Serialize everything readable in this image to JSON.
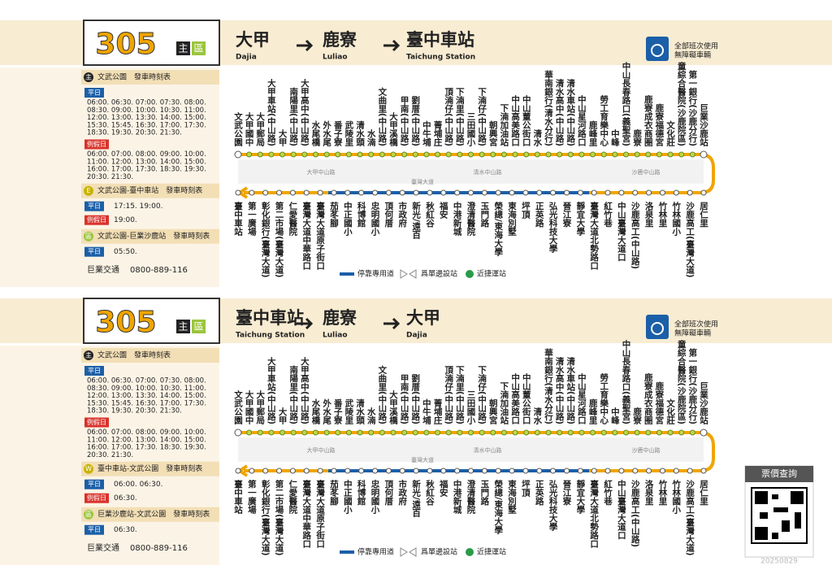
{
  "panels": [
    {
      "route": "305",
      "badge_main": "主",
      "badge_zone": "區",
      "stations": [
        {
          "name": "大甲",
          "en": "Dajia"
        },
        {
          "name": "鹿寮",
          "en": "Luliao"
        },
        {
          "name": "臺中車站",
          "en": "Taichung Station"
        }
      ],
      "accessible": [
        "全部班次使用",
        "無障礙車輛"
      ],
      "timetable": [
        {
          "icon": "主",
          "title": "文武公園　發車時刻表",
          "rows": [
            {
              "label": "平日",
              "times": [
                "06:00. 06:30. 07:00. 07:30. 08:00.",
                "08:30. 09:00. 10:00. 10:30. 11:00.",
                "12:00. 13:00. 13:30. 14:00. 15:00.",
                "15:30. 15:45. 16:30. 17:00. 17:30.",
                "18:30. 19:30. 20:30. 21:30."
              ]
            },
            {
              "label": "例假日",
              "times": [
                "06:00. 07:00. 08:00. 09:00. 10:00.",
                "11:00. 12:00. 13:00. 14:00. 15:00.",
                "16:00. 17:00. 17:30. 18:30. 19:30.",
                "20:30. 21:30."
              ]
            }
          ]
        },
        {
          "icon": "E",
          "title": "文武公園-臺中車站　發車時刻表",
          "rows": [
            {
              "label": "平日",
              "times": [
                "17:15. 19:00."
              ]
            },
            {
              "label": "例假日",
              "times": [
                "19:00."
              ]
            }
          ]
        },
        {
          "icon": "區",
          "title": "文武公園-巨業沙鹿站　發車時刻表",
          "rows": [
            {
              "label": "平日",
              "times": [
                "05:50."
              ]
            }
          ]
        }
      ],
      "company": "巨業交通",
      "phone": "0800-889-116",
      "upper_stops": [
        "文武公園",
        "大甲國中",
        "大甲郵局",
        "大甲車站(中山路)",
        "大甲",
        "南陽里(中山路)",
        "大甲高中(中山路)",
        "水尾橋",
        "外水尾",
        "番子寮",
        "武陵里",
        "清水頭",
        "水湳",
        "文曲里(中山路)",
        "大甲溪橋",
        "甲南(中山路)",
        "劉厝(中山路)",
        "中牛埔",
        "菁埔庄",
        "頂湳仔(中山路)",
        "下湳里(中山路)",
        "三田國小",
        "下湳仔(中山路)",
        "朝興宮",
        "下湳加油站",
        "中山高美路口",
        "中山董公街口",
        "清水",
        "華南銀行(清水分行)",
        "清水高中(中山路)",
        "清水車站(中山路)",
        "中山星河路口",
        "鹿峰里",
        "勞工育樂中心",
        "中峰",
        "中山長春路口(義聖宮)",
        "鹿寮",
        "鹿寮成衣商圈",
        "鹿寮福德宮",
        "文化莊",
        "童綜合醫院(沙鹿院區)",
        "第一銀行(沙鹿分行)",
        "巨業沙鹿站"
      ],
      "lower_stops": [
        "臺中車站",
        "第一廣場",
        "彰化銀行(臺灣大道)",
        "第二市場(臺灣大道)",
        "仁愛醫院",
        "臺灣大道中華路口",
        "臺灣大道原子街口",
        "茄苳腳",
        "中正國小",
        "科博館",
        "忠明國小",
        "頂何厝",
        "市政府",
        "新光/遠百",
        "秋紅谷",
        "福安",
        "中港新城",
        "澄清醫院",
        "玉門路",
        "榮總/東海大學",
        "東海別墅",
        "坪頂",
        "正英路",
        "弘光科技大學",
        "晉江寮",
        "靜宜大學",
        "臺灣大道北勢路口",
        "紅竹巷",
        "中山臺灣大道口",
        "沙鹿高工(中山路)",
        "洛泉里",
        "竹林里",
        "竹林國小",
        "沙鹿高工(臺灣大道)",
        "居仁里"
      ],
      "roads": [
        "大甲中山路",
        "臺灣大道",
        "清水中山路",
        "沙鹿中山路"
      ],
      "legend": [
        "停靠專用道",
        "爲單邊設站",
        "近捷運站"
      ]
    },
    {
      "route": "305",
      "badge_main": "主",
      "badge_zone": "區",
      "stations": [
        {
          "name": "臺中車站",
          "en": "Taichung Station"
        },
        {
          "name": "鹿寮",
          "en": "Luliao"
        },
        {
          "name": "大甲",
          "en": "Dajia"
        }
      ],
      "accessible": [
        "全部班次使用",
        "無障礙車輛"
      ],
      "timetable": [
        {
          "icon": "主",
          "title": "文武公園　發車時刻表",
          "rows": [
            {
              "label": "平日",
              "times": [
                "06:00. 06:30. 07:00. 07:30. 08:00.",
                "08:30. 09:00. 10:00. 10:30. 11:00.",
                "12:00. 13:00. 13:30. 14:00. 15:00.",
                "15:30. 15:45. 16:30. 17:00. 17:30.",
                "18:30. 19:30. 20:30. 21:30."
              ]
            },
            {
              "label": "例假日",
              "times": [
                "06:00. 07:00. 08:00. 09:00. 10:00.",
                "11:00. 12:00. 13:00. 14:00. 15:00.",
                "16:00. 17:00. 17:30. 18:30. 19:30.",
                "20:30. 21:30."
              ]
            }
          ]
        },
        {
          "icon": "W",
          "title": "臺中車站-文武公園　發車時刻表",
          "rows": [
            {
              "label": "平日",
              "times": [
                "06:00. 06:30."
              ]
            },
            {
              "label": "例假日",
              "times": [
                "06:30."
              ]
            }
          ]
        },
        {
          "icon": "區",
          "title": "巨業沙鹿站-文武公園　發車時刻表",
          "rows": [
            {
              "label": "平日",
              "times": [
                "06:30."
              ]
            }
          ]
        }
      ],
      "company": "巨業交通",
      "phone": "0800-889-116",
      "upper_stops": [
        "文武公園",
        "大甲國中",
        "大甲郵局",
        "大甲車站(中山路)",
        "大甲",
        "南陽里(中山路)",
        "大甲高中(中山路)",
        "水尾橋",
        "外水尾",
        "番子寮",
        "武陵里",
        "清水頭",
        "水湳",
        "文曲里(中山路)",
        "大甲溪橋",
        "甲南(中山路)",
        "劉厝(中山路)",
        "中牛埔",
        "菁埔庄",
        "頂湳仔(中山路)",
        "下湳里(中山路)",
        "三田國小",
        "下湳仔(中山路)",
        "朝興宮",
        "下湳加油站",
        "中山高美路口",
        "中山董公街口",
        "清水",
        "華南銀行(清水分行)",
        "清水高中(中山路)",
        "清水車站(中山路)",
        "中山星河路口",
        "鹿峰里",
        "勞工育樂中心",
        "中峰",
        "中山長春路口(義聖宮)",
        "鹿寮",
        "鹿寮成衣商圈",
        "鹿寮福德宮",
        "文化莊",
        "童綜合醫院(沙鹿院區)",
        "第一銀行(沙鹿分行)",
        "巨業沙鹿站"
      ],
      "lower_stops": [
        "臺中車站",
        "第一廣場",
        "彰化銀行(臺灣大道)",
        "第二市場(臺灣大道)",
        "仁愛醫院",
        "臺灣大道中華路口",
        "臺灣大道原子街口",
        "茄苳腳",
        "中正國小",
        "科博館",
        "忠明國小",
        "頂何厝",
        "市政府",
        "新光/遠百",
        "秋紅谷",
        "福安",
        "中港新城",
        "澄清醫院",
        "玉門路",
        "榮總/東海大學",
        "東海別墅",
        "坪頂",
        "正英路",
        "弘光科技大學",
        "晉江寮",
        "靜宜大學",
        "臺灣大道北勢路口",
        "紅竹巷",
        "中山臺灣大道口",
        "沙鹿高工(中山路)",
        "洛泉里",
        "竹林里",
        "竹林國小",
        "沙鹿高工(臺灣大道)",
        "居仁里"
      ],
      "roads": [
        "大甲中山路",
        "臺灣大道",
        "清水中山路",
        "沙鹿中山路"
      ],
      "legend": [
        "停靠專用道",
        "爲單邊設站",
        "近捷運站"
      ]
    }
  ],
  "fare": "票價查詢",
  "date": "20250829"
}
